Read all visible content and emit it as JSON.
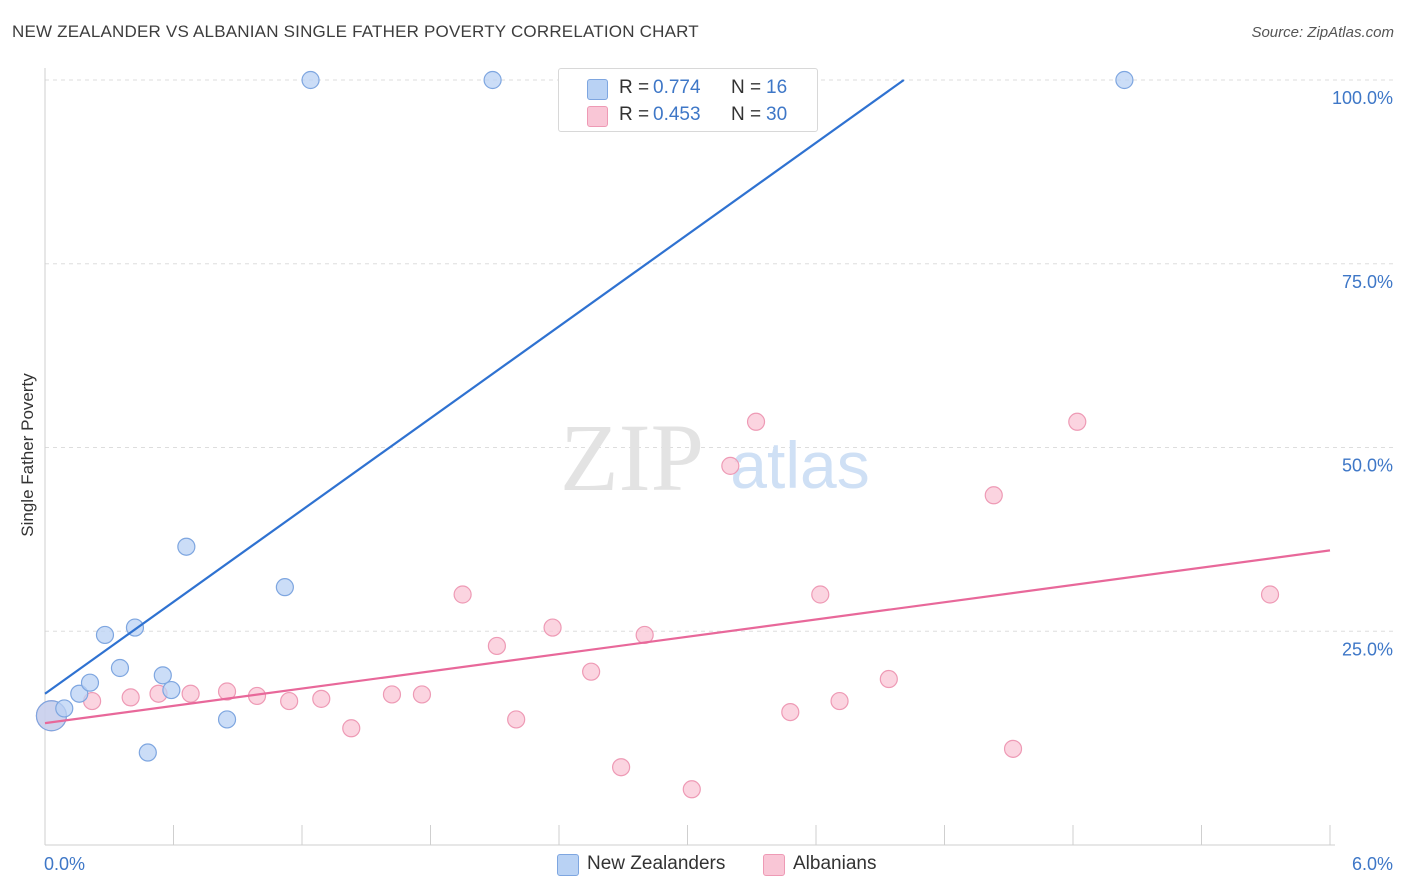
{
  "header": {
    "title": "NEW ZEALANDER VS ALBANIAN SINGLE FATHER POVERTY CORRELATION CHART",
    "source": "Source: ZipAtlas.com"
  },
  "watermark": {
    "zip": "ZIP",
    "atlas": "atlas"
  },
  "legend": {
    "series": [
      {
        "name": "New Zealanders",
        "r_label": "R =",
        "r_value": "0.774",
        "n_label": "N =",
        "n_value": "16",
        "fill": "#b9d2f4",
        "stroke": "#7ea6e0"
      },
      {
        "name": "Albanians",
        "r_label": "R =",
        "r_value": "0.453",
        "n_label": "N =",
        "n_value": "30",
        "fill": "#f9c6d6",
        "stroke": "#ee9ab5"
      }
    ]
  },
  "colors": {
    "blue_line": "#2f72d1",
    "pink_line": "#e8689a",
    "blue_point_fill": "#b9d2f4",
    "blue_point_stroke": "#7ea6e0",
    "pink_point_fill": "#f9c6d6",
    "pink_point_stroke": "#ee9ab5",
    "tick_label": "#3e77c7",
    "grid": "#dddddd"
  },
  "chart_data": {
    "type": "scatter",
    "title": "NEW ZEALANDER VS ALBANIAN SINGLE FATHER POVERTY CORRELATION CHART",
    "xlabel": "",
    "ylabel": "Single Father Poverty",
    "xlim": [
      0,
      6
    ],
    "ylim": [
      0,
      100
    ],
    "x_tick_labels": [
      {
        "value": 0,
        "label": "0.0%"
      },
      {
        "value": 6,
        "label": "6.0%"
      }
    ],
    "y_tick_labels": [
      {
        "value": 25,
        "label": "25.0%"
      },
      {
        "value": 50,
        "label": "50.0%"
      },
      {
        "value": 75,
        "label": "75.0%"
      },
      {
        "value": 100,
        "label": "100.0%"
      }
    ],
    "grid": true,
    "legend_position": "bottom",
    "series": [
      {
        "name": "New Zealanders",
        "points": [
          {
            "x": 0.03,
            "y": 13.5
          },
          {
            "x": 0.09,
            "y": 14.5
          },
          {
            "x": 0.16,
            "y": 16.5
          },
          {
            "x": 0.21,
            "y": 18.0
          },
          {
            "x": 0.28,
            "y": 24.5
          },
          {
            "x": 0.35,
            "y": 20.0
          },
          {
            "x": 0.42,
            "y": 25.5
          },
          {
            "x": 0.48,
            "y": 8.5
          },
          {
            "x": 0.55,
            "y": 19.0
          },
          {
            "x": 0.59,
            "y": 17.0
          },
          {
            "x": 0.66,
            "y": 36.5
          },
          {
            "x": 0.85,
            "y": 13.0
          },
          {
            "x": 1.12,
            "y": 31.0
          },
          {
            "x": 1.24,
            "y": 100.0
          },
          {
            "x": 2.09,
            "y": 100.0
          },
          {
            "x": 5.04,
            "y": 100.0
          }
        ],
        "trendline": {
          "x": [
            0.0,
            4.01
          ],
          "y": [
            16.5,
            100.0
          ]
        }
      },
      {
        "name": "Albanians",
        "points": [
          {
            "x": 0.03,
            "y": 13.5
          },
          {
            "x": 0.22,
            "y": 15.5
          },
          {
            "x": 0.4,
            "y": 16.0
          },
          {
            "x": 0.53,
            "y": 16.5
          },
          {
            "x": 0.68,
            "y": 16.5
          },
          {
            "x": 0.85,
            "y": 16.8
          },
          {
            "x": 0.99,
            "y": 16.2
          },
          {
            "x": 1.14,
            "y": 15.5
          },
          {
            "x": 1.29,
            "y": 15.8
          },
          {
            "x": 1.43,
            "y": 11.8
          },
          {
            "x": 1.62,
            "y": 16.4
          },
          {
            "x": 1.76,
            "y": 16.4
          },
          {
            "x": 1.95,
            "y": 30.0
          },
          {
            "x": 2.11,
            "y": 23.0
          },
          {
            "x": 2.2,
            "y": 13.0
          },
          {
            "x": 2.37,
            "y": 25.5
          },
          {
            "x": 2.55,
            "y": 19.5
          },
          {
            "x": 2.69,
            "y": 6.5
          },
          {
            "x": 2.8,
            "y": 24.5
          },
          {
            "x": 3.02,
            "y": 3.5
          },
          {
            "x": 3.2,
            "y": 47.5
          },
          {
            "x": 3.32,
            "y": 53.5
          },
          {
            "x": 3.48,
            "y": 14.0
          },
          {
            "x": 3.62,
            "y": 30.0
          },
          {
            "x": 3.71,
            "y": 15.5
          },
          {
            "x": 3.94,
            "y": 18.5
          },
          {
            "x": 4.43,
            "y": 43.5
          },
          {
            "x": 4.52,
            "y": 9.0
          },
          {
            "x": 4.82,
            "y": 53.5
          },
          {
            "x": 5.72,
            "y": 30.0
          }
        ],
        "trendline": {
          "x": [
            0.0,
            6.0
          ],
          "y": [
            12.5,
            36.0
          ]
        }
      }
    ]
  }
}
